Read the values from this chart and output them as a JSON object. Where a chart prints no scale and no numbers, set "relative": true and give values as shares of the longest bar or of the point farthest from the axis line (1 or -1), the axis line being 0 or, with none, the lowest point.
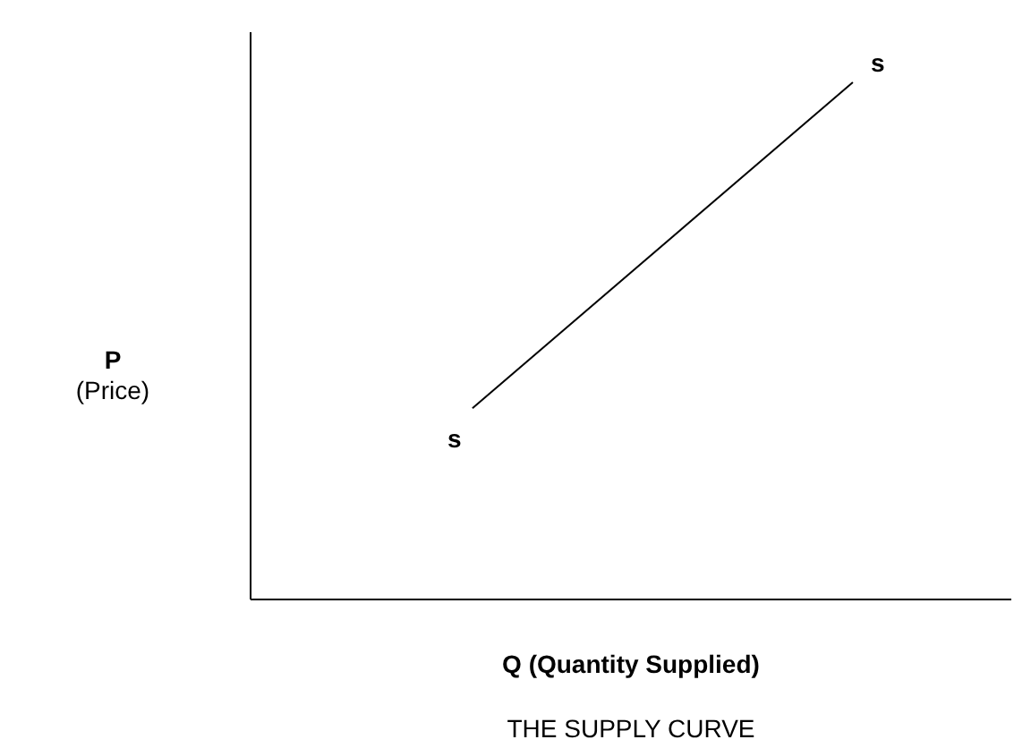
{
  "chart_data": {
    "type": "line",
    "title": "THE SUPPLY CURVE",
    "xlabel": "Q (Quantity Supplied)",
    "ylabel": "P (Price)",
    "relative": true,
    "categories": [
      null,
      null,
      null,
      null,
      null,
      null,
      null,
      null,
      null,
      null,
      null,
      null
    ],
    "series": [
      {
        "name": "s",
        "color": "#000000",
        "values": [
          null,
          null,
          null,
          0.37,
          null,
          null,
          null,
          null,
          null,
          1,
          null,
          null
        ]
      }
    ],
    "grid": false,
    "legend": false,
    "marker": "none",
    "line_style": "solid"
  }
}
